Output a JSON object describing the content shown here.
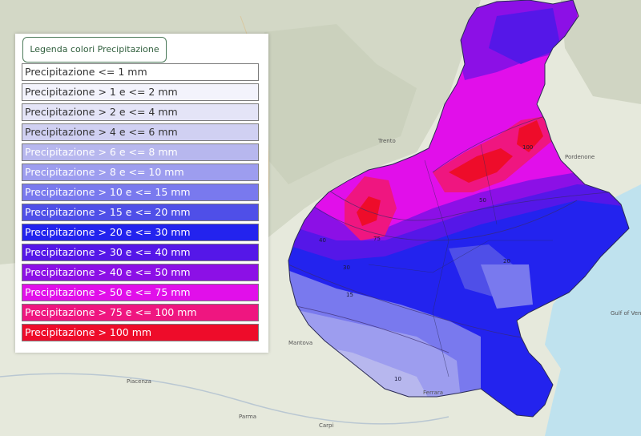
{
  "legend": {
    "title": "Legenda colori Precipitazione",
    "items": [
      {
        "label": "Precipitazione <= 1 mm",
        "color": "#ffffff",
        "text_color": "#333333"
      },
      {
        "label": "Precipitazione > 1 e <= 2 mm",
        "color": "#f3f3fc",
        "text_color": "#333333"
      },
      {
        "label": "Precipitazione > 2 e <= 4 mm",
        "color": "#e4e4f7",
        "text_color": "#333333"
      },
      {
        "label": "Precipitazione > 4 e <= 6 mm",
        "color": "#d0d0f2",
        "text_color": "#333333"
      },
      {
        "label": "Precipitazione > 6 e <= 8 mm",
        "color": "#b7b7ee",
        "text_color": "#ffffff"
      },
      {
        "label": "Precipitazione > 8 e <= 10 mm",
        "color": "#9d9def",
        "text_color": "#ffffff"
      },
      {
        "label": "Precipitazione > 10 e <= 15 mm",
        "color": "#7979ee",
        "text_color": "#ffffff"
      },
      {
        "label": "Precipitazione > 15 e <= 20 mm",
        "color": "#4f4fe8",
        "text_color": "#ffffff"
      },
      {
        "label": "Precipitazione > 20 e <= 30 mm",
        "color": "#2323ee",
        "text_color": "#ffffff"
      },
      {
        "label": "Precipitazione > 30 e <= 40 mm",
        "color": "#5517e8",
        "text_color": "#ffffff"
      },
      {
        "label": "Precipitazione > 40 e <= 50 mm",
        "color": "#8c10e6",
        "text_color": "#ffffff"
      },
      {
        "label": "Precipitazione > 50 e <= 75 mm",
        "color": "#e10fea",
        "text_color": "#ffffff"
      },
      {
        "label": "Precipitazione > 75 e <= 100 mm",
        "color": "#ef1680",
        "text_color": "#ffffff"
      },
      {
        "label": "Precipitazione > 100 mm",
        "color": "#ee0c2a",
        "text_color": "#ffffff"
      }
    ]
  },
  "map": {
    "place_labels": [
      "Pordenone",
      "Gulf of Venice",
      "Ferrara",
      "Carpi",
      "Mantova",
      "Piacenza",
      "Parma",
      "Trento"
    ],
    "contour_labels": [
      "10",
      "15",
      "20",
      "30",
      "40",
      "50",
      "75",
      "100"
    ],
    "colors": {
      "land": "#e6e9dc",
      "sea": "#bfe2ee",
      "relief": "#cdd3c0"
    }
  }
}
